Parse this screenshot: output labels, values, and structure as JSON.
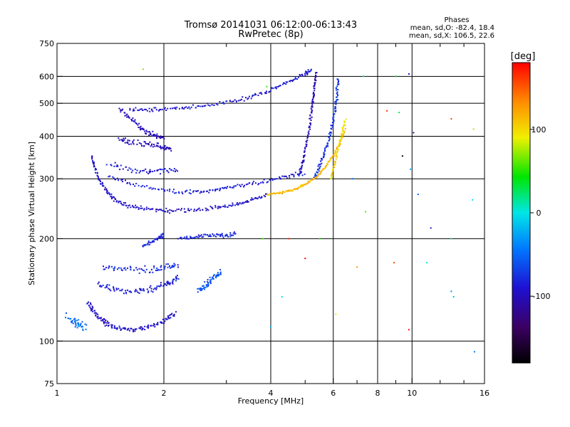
{
  "chart_data": {
    "type": "scatter",
    "title": "Tromsø 20141031 06:12:00-06:13:43",
    "subtitle": "RwPretec (8p)",
    "xlabel": "Frequency [MHz]",
    "ylabel": "Stationary phase Virtual Height [km]",
    "x_scale": "log",
    "y_scale": "log",
    "xlim": [
      1,
      16
    ],
    "ylim": [
      75,
      750
    ],
    "grid": true,
    "x_ticks": [
      {
        "v": 1,
        "label": "1"
      },
      {
        "v": 2,
        "label": "2"
      },
      {
        "v": 4,
        "label": "4"
      },
      {
        "v": 6,
        "label": "6"
      },
      {
        "v": 8,
        "label": "8"
      },
      {
        "v": 10,
        "label": "10"
      },
      {
        "v": 16,
        "label": "16"
      }
    ],
    "x_grid": [
      2,
      4,
      6,
      8,
      10
    ],
    "x_minor": [
      3,
      5,
      7,
      9,
      12,
      14
    ],
    "y_ticks": [
      {
        "v": 75,
        "label": "75"
      },
      {
        "v": 100,
        "label": "100"
      },
      {
        "v": 200,
        "label": "200"
      },
      {
        "v": 300,
        "label": "300"
      },
      {
        "v": 400,
        "label": "400"
      },
      {
        "v": 500,
        "label": "500"
      },
      {
        "v": 600,
        "label": "600"
      },
      {
        "v": 750,
        "label": "750"
      }
    ],
    "y_grid": [
      100,
      200,
      300,
      400,
      500,
      600
    ],
    "phase_stats": {
      "heading": "Phases",
      "line_o": "mean, sd,O: -82.4, 18.4",
      "line_x": "mean, sd,X: 106.5, 22.6"
    },
    "colorbar": {
      "label": "[deg]",
      "range": [
        -180,
        180
      ],
      "ticks": [
        {
          "v": 100,
          "label": "100"
        },
        {
          "v": 0,
          "label": "0"
        },
        {
          "v": -100,
          "label": "-100"
        }
      ]
    },
    "traces": [
      {
        "name": "",
        "phase": -95,
        "spread": 0.025,
        "points": [
          [
            1.22,
            130
          ],
          [
            1.26,
            123
          ],
          [
            1.32,
            117
          ],
          [
            1.38,
            113
          ],
          [
            1.45,
            110
          ],
          [
            1.55,
            108
          ],
          [
            1.65,
            108
          ],
          [
            1.8,
            110
          ],
          [
            1.95,
            113
          ],
          [
            2.05,
            117
          ],
          [
            2.15,
            121
          ]
        ]
      },
      {
        "name": "",
        "phase": -85,
        "spread": 0.03,
        "points": [
          [
            1.3,
            148
          ],
          [
            1.4,
            143
          ],
          [
            1.55,
            140
          ],
          [
            1.7,
            140
          ],
          [
            1.85,
            142
          ],
          [
            2.0,
            146
          ],
          [
            2.1,
            150
          ],
          [
            2.2,
            154
          ]
        ]
      },
      {
        "name": "",
        "phase": -80,
        "spread": 0.03,
        "points": [
          [
            1.35,
            165
          ],
          [
            1.5,
            162
          ],
          [
            1.7,
            162
          ],
          [
            1.9,
            163
          ],
          [
            2.05,
            166
          ],
          [
            2.2,
            168
          ]
        ]
      },
      {
        "name": "",
        "phase": -80,
        "spread": 0.02,
        "points": [
          [
            1.75,
            190
          ],
          [
            1.85,
            196
          ],
          [
            1.95,
            202
          ],
          [
            2.0,
            205
          ]
        ]
      },
      {
        "name": "",
        "phase": -80,
        "spread": 0.02,
        "points": [
          [
            2.2,
            200
          ],
          [
            2.4,
            202
          ],
          [
            2.6,
            204
          ],
          [
            2.8,
            205
          ],
          [
            3.0,
            205
          ],
          [
            3.2,
            206
          ]
        ]
      },
      {
        "name": "",
        "phase": -95,
        "spread": 0.02,
        "points": [
          [
            1.25,
            350
          ],
          [
            1.28,
            320
          ],
          [
            1.32,
            295
          ],
          [
            1.38,
            275
          ],
          [
            1.45,
            262
          ],
          [
            1.55,
            252
          ],
          [
            1.7,
            246
          ],
          [
            1.9,
            243
          ],
          [
            2.1,
            242
          ],
          [
            2.4,
            243
          ],
          [
            2.7,
            245
          ],
          [
            3.0,
            249
          ],
          [
            3.3,
            255
          ],
          [
            3.6,
            262
          ],
          [
            3.9,
            270
          ]
        ]
      },
      {
        "name": "",
        "phase": -85,
        "spread": 0.02,
        "points": [
          [
            1.4,
            305
          ],
          [
            1.6,
            290
          ],
          [
            1.9,
            280
          ],
          [
            2.2,
            275
          ],
          [
            2.5,
            275
          ],
          [
            2.8,
            278
          ],
          [
            3.1,
            283
          ],
          [
            3.5,
            290
          ],
          [
            4.0,
            298
          ],
          [
            4.5,
            305
          ],
          [
            5.0,
            312
          ]
        ]
      },
      {
        "name": "",
        "phase": -100,
        "spread": 0.025,
        "points": [
          [
            1.5,
            480
          ],
          [
            1.6,
            455
          ],
          [
            1.7,
            430
          ],
          [
            1.8,
            410
          ],
          [
            1.9,
            400
          ],
          [
            2.0,
            395
          ]
        ]
      },
      {
        "name": "",
        "phase": -90,
        "spread": 0.02,
        "points": [
          [
            1.6,
            480
          ],
          [
            1.8,
            478
          ],
          [
            2.0,
            480
          ],
          [
            2.3,
            485
          ],
          [
            2.6,
            492
          ],
          [
            3.0,
            502
          ],
          [
            3.4,
            515
          ],
          [
            3.8,
            535
          ],
          [
            4.2,
            560
          ],
          [
            4.6,
            585
          ],
          [
            5.0,
            610
          ],
          [
            5.2,
            625
          ]
        ]
      },
      {
        "name": "",
        "phase": -100,
        "spread": 0.03,
        "points": [
          [
            1.5,
            390
          ],
          [
            1.6,
            385
          ],
          [
            1.75,
            380
          ],
          [
            1.9,
            375
          ],
          [
            2.0,
            372
          ],
          [
            2.1,
            368
          ]
        ]
      },
      {
        "name": "",
        "phase": -90,
        "spread": 0.025,
        "points": [
          [
            1.4,
            330
          ],
          [
            1.6,
            320
          ],
          [
            1.8,
            315
          ],
          [
            2.0,
            318
          ],
          [
            2.2,
            320
          ]
        ]
      },
      {
        "name": "",
        "phase": -100,
        "spread": 0.015,
        "points": [
          [
            4.8,
            310
          ],
          [
            4.95,
            340
          ],
          [
            5.05,
            380
          ],
          [
            5.15,
            430
          ],
          [
            5.22,
            480
          ],
          [
            5.28,
            530
          ],
          [
            5.33,
            580
          ],
          [
            5.38,
            620
          ]
        ]
      },
      {
        "name": "",
        "phase": -75,
        "spread": 0.02,
        "points": [
          [
            5.3,
            300
          ],
          [
            5.45,
            320
          ],
          [
            5.6,
            345
          ],
          [
            5.75,
            375
          ],
          [
            5.9,
            410
          ],
          [
            6.0,
            450
          ],
          [
            6.1,
            490
          ],
          [
            6.15,
            540
          ],
          [
            6.2,
            600
          ]
        ]
      },
      {
        "name": "",
        "phase": 115,
        "spread": 0.012,
        "points": [
          [
            3.9,
            270
          ],
          [
            4.2,
            272
          ],
          [
            4.5,
            276
          ],
          [
            4.8,
            283
          ],
          [
            5.1,
            292
          ],
          [
            5.4,
            305
          ],
          [
            5.7,
            325
          ],
          [
            6.0,
            350
          ],
          [
            6.25,
            380
          ],
          [
            6.5,
            420
          ]
        ]
      },
      {
        "name": "",
        "phase": 100,
        "spread": 0.015,
        "points": [
          [
            5.9,
            300
          ],
          [
            6.05,
            330
          ],
          [
            6.2,
            370
          ],
          [
            6.35,
            410
          ],
          [
            6.5,
            450
          ]
        ]
      },
      {
        "name": "",
        "phase": -45,
        "spread": 0.04,
        "points": [
          [
            1.1,
            115
          ],
          [
            1.15,
            112
          ],
          [
            1.2,
            110
          ],
          [
            1.05,
            120
          ]
        ]
      },
      {
        "name": "",
        "phase": -60,
        "spread": 0.03,
        "points": [
          [
            2.5,
            140
          ],
          [
            2.6,
            145
          ],
          [
            2.7,
            150
          ],
          [
            2.8,
            155
          ],
          [
            2.9,
            160
          ]
        ]
      }
    ],
    "scatter_points": [
      [
        1.75,
        630
      ],
      [
        3.9,
        560
      ],
      [
        7.3,
        600
      ],
      [
        9.0,
        600
      ],
      [
        9.8,
        610
      ],
      [
        8.5,
        475
      ],
      [
        9.2,
        470
      ],
      [
        10.1,
        410
      ],
      [
        9.4,
        350
      ],
      [
        12.9,
        450
      ],
      [
        14.9,
        420
      ],
      [
        14.8,
        260
      ],
      [
        9.9,
        320
      ],
      [
        11.3,
        215
      ],
      [
        7.4,
        240
      ],
      [
        10.4,
        270
      ],
      [
        6.8,
        300
      ],
      [
        12.9,
        200
      ],
      [
        13.1,
        135
      ],
      [
        12.9,
        140
      ],
      [
        4.3,
        135
      ],
      [
        4.0,
        110
      ],
      [
        6.1,
        120
      ],
      [
        7.0,
        165
      ],
      [
        5.0,
        175
      ],
      [
        9.8,
        108
      ],
      [
        8.9,
        170
      ],
      [
        11.0,
        170
      ],
      [
        15.0,
        93
      ],
      [
        4.5,
        200
      ],
      [
        5.5,
        200
      ],
      [
        3.8,
        200
      ]
    ]
  }
}
